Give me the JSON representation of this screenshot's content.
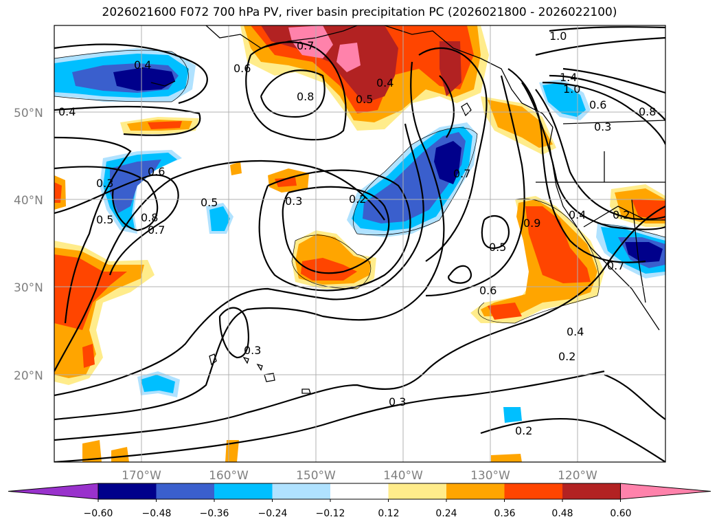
{
  "title": "2026021600 F072 700 hPa PV, river basin precipitation PC (2026021800 - 2026022100)",
  "lat_labels": [
    "50°N",
    "40°N",
    "30°N",
    "20°N"
  ],
  "lon_labels": [
    "170°W",
    "160°W",
    "150°W",
    "140°W",
    "130°W",
    "120°W"
  ],
  "contour_labels": [
    "0.4",
    "0.6",
    "0.7",
    "0.8",
    "0.4",
    "0.5",
    "1.0",
    "1.4",
    "1.0",
    "0.6",
    "0.8",
    "0.3",
    "0.4",
    "0.3",
    "0.6",
    "0.5",
    "0.8",
    "0.7",
    "0.5",
    "0.3",
    "0.2",
    "0.7",
    "0.9",
    "0.4",
    "0.2",
    "0.7",
    "0.5",
    "0.6",
    "0.4",
    "0.2",
    "0.3",
    "0.3",
    "0.2"
  ],
  "colorbar": {
    "ticks": [
      "−0.60",
      "−0.48",
      "−0.36",
      "−0.24",
      "−0.12",
      "0.12",
      "0.24",
      "0.36",
      "0.48",
      "0.60"
    ],
    "colors": [
      "#9932cc",
      "#00008b",
      "#3a5fcd",
      "#00bfff",
      "#b0e2ff",
      "#ffffff",
      "#ffec8b",
      "#ffa500",
      "#ff4500",
      "#b22222",
      "#ff82ab"
    ]
  }
}
